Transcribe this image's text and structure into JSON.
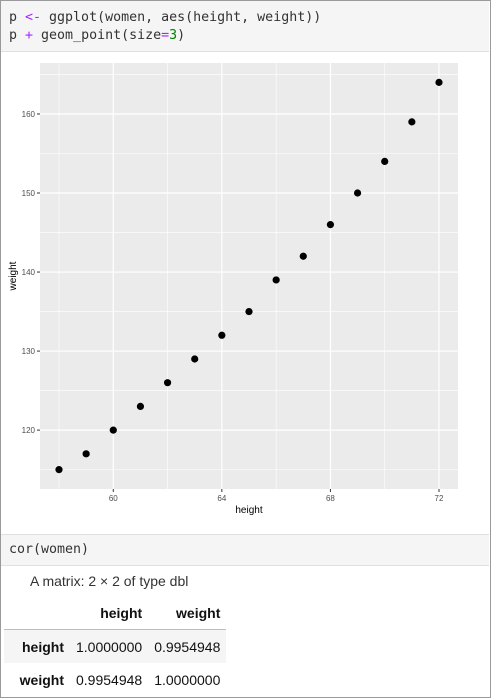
{
  "cells": {
    "cell1": {
      "line1": {
        "a": "p ",
        "op": "<-",
        "b": " ggplot(women, aes(height, weight))"
      },
      "line2": {
        "a": "p ",
        "op": "+",
        "b": " geom_point(size",
        "eq": "=",
        "num": "3",
        "c": ")"
      }
    },
    "cell2": {
      "code": "cor(women)"
    }
  },
  "output": {
    "caption": "A matrix: 2 × 2 of type dbl",
    "columns": [
      "",
      "height",
      "weight"
    ],
    "rows": [
      {
        "name": "height",
        "values": [
          "1.0000000",
          "0.9954948"
        ]
      },
      {
        "name": "weight",
        "values": [
          "0.9954948",
          "1.0000000"
        ]
      }
    ]
  },
  "colors": {
    "panel": "#ebebeb",
    "grid": "#ffffff",
    "point": "#000000",
    "operator": "#aa22ff",
    "number": "#008000"
  },
  "chart_data": {
    "type": "scatter",
    "title": "",
    "xlabel": "height",
    "ylabel": "weight",
    "x": [
      58,
      59,
      60,
      61,
      62,
      63,
      64,
      65,
      66,
      67,
      68,
      69,
      70,
      71,
      72
    ],
    "y": [
      115,
      117,
      120,
      123,
      126,
      129,
      132,
      135,
      139,
      142,
      146,
      150,
      154,
      159,
      164
    ],
    "xlim": [
      57.3,
      72.7
    ],
    "ylim": [
      112.55,
      166.45
    ],
    "xticks": [
      60,
      64,
      68,
      72
    ],
    "yticks": [
      120,
      130,
      140,
      150,
      160
    ],
    "grid": true,
    "legend": "none"
  }
}
